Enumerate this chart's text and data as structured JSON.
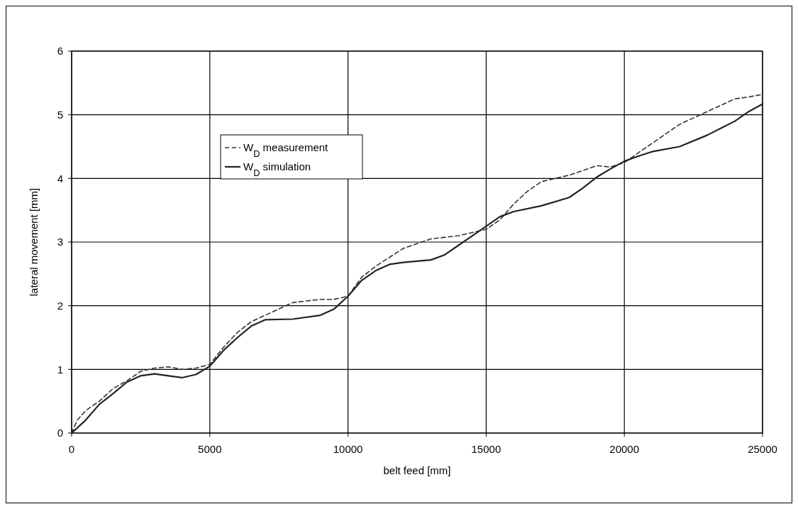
{
  "chart_data": {
    "type": "line",
    "xlabel": "belt feed [mm]",
    "ylabel": "lateral movement [mm]",
    "xlim": [
      0,
      25000
    ],
    "xticks": [
      0,
      5000,
      10000,
      15000,
      20000,
      25000
    ],
    "ylim": [
      0,
      6
    ],
    "yticks": [
      0,
      1,
      2,
      3,
      4,
      5,
      6
    ],
    "grid": true,
    "legend": "top left",
    "series": [
      {
        "name": "W$_{D}$ measurement",
        "color": "#333333",
        "line_style": "dashed",
        "x": [
          0,
          200,
          500,
          1000,
          1500,
          2000,
          2500,
          3000,
          3500,
          4000,
          4500,
          5000,
          5500,
          6000,
          6500,
          7000,
          8000,
          9000,
          9500,
          10000,
          10500,
          11000,
          12000,
          13000,
          14000,
          15000,
          15500,
          16000,
          16500,
          17000,
          18000,
          19000,
          19500,
          20000,
          21000,
          22000,
          23000,
          24000,
          24500,
          25000
        ],
        "values": [
          0,
          0.2,
          0.35,
          0.5,
          0.7,
          0.82,
          0.97,
          1.02,
          1.04,
          1.0,
          1.02,
          1.08,
          1.35,
          1.58,
          1.75,
          1.85,
          2.05,
          2.1,
          2.1,
          2.15,
          2.45,
          2.62,
          2.9,
          3.05,
          3.1,
          3.2,
          3.35,
          3.6,
          3.8,
          3.95,
          4.05,
          4.2,
          4.18,
          4.25,
          4.55,
          4.85,
          5.05,
          5.25,
          5.28,
          5.32
        ]
      },
      {
        "name": "W$_{D}$ simulation",
        "color": "#222222",
        "line_style": "solid",
        "x": [
          0,
          500,
          1000,
          1500,
          2000,
          2500,
          3000,
          3500,
          4000,
          4500,
          5000,
          5500,
          6000,
          6500,
          7000,
          8000,
          9000,
          9500,
          10000,
          10500,
          11000,
          11500,
          12000,
          13000,
          13500,
          14000,
          14500,
          15000,
          15500,
          16000,
          17000,
          18000,
          18500,
          19000,
          19500,
          20000,
          20500,
          21000,
          22000,
          23000,
          24000,
          24500,
          25000
        ],
        "values": [
          0,
          0.2,
          0.45,
          0.62,
          0.8,
          0.9,
          0.93,
          0.9,
          0.87,
          0.92,
          1.05,
          1.3,
          1.5,
          1.68,
          1.78,
          1.79,
          1.85,
          1.95,
          2.15,
          2.4,
          2.55,
          2.65,
          2.68,
          2.72,
          2.8,
          2.95,
          3.1,
          3.25,
          3.4,
          3.48,
          3.57,
          3.7,
          3.85,
          4.02,
          4.15,
          4.27,
          4.35,
          4.42,
          4.5,
          4.68,
          4.9,
          5.05,
          5.17
        ]
      }
    ]
  }
}
